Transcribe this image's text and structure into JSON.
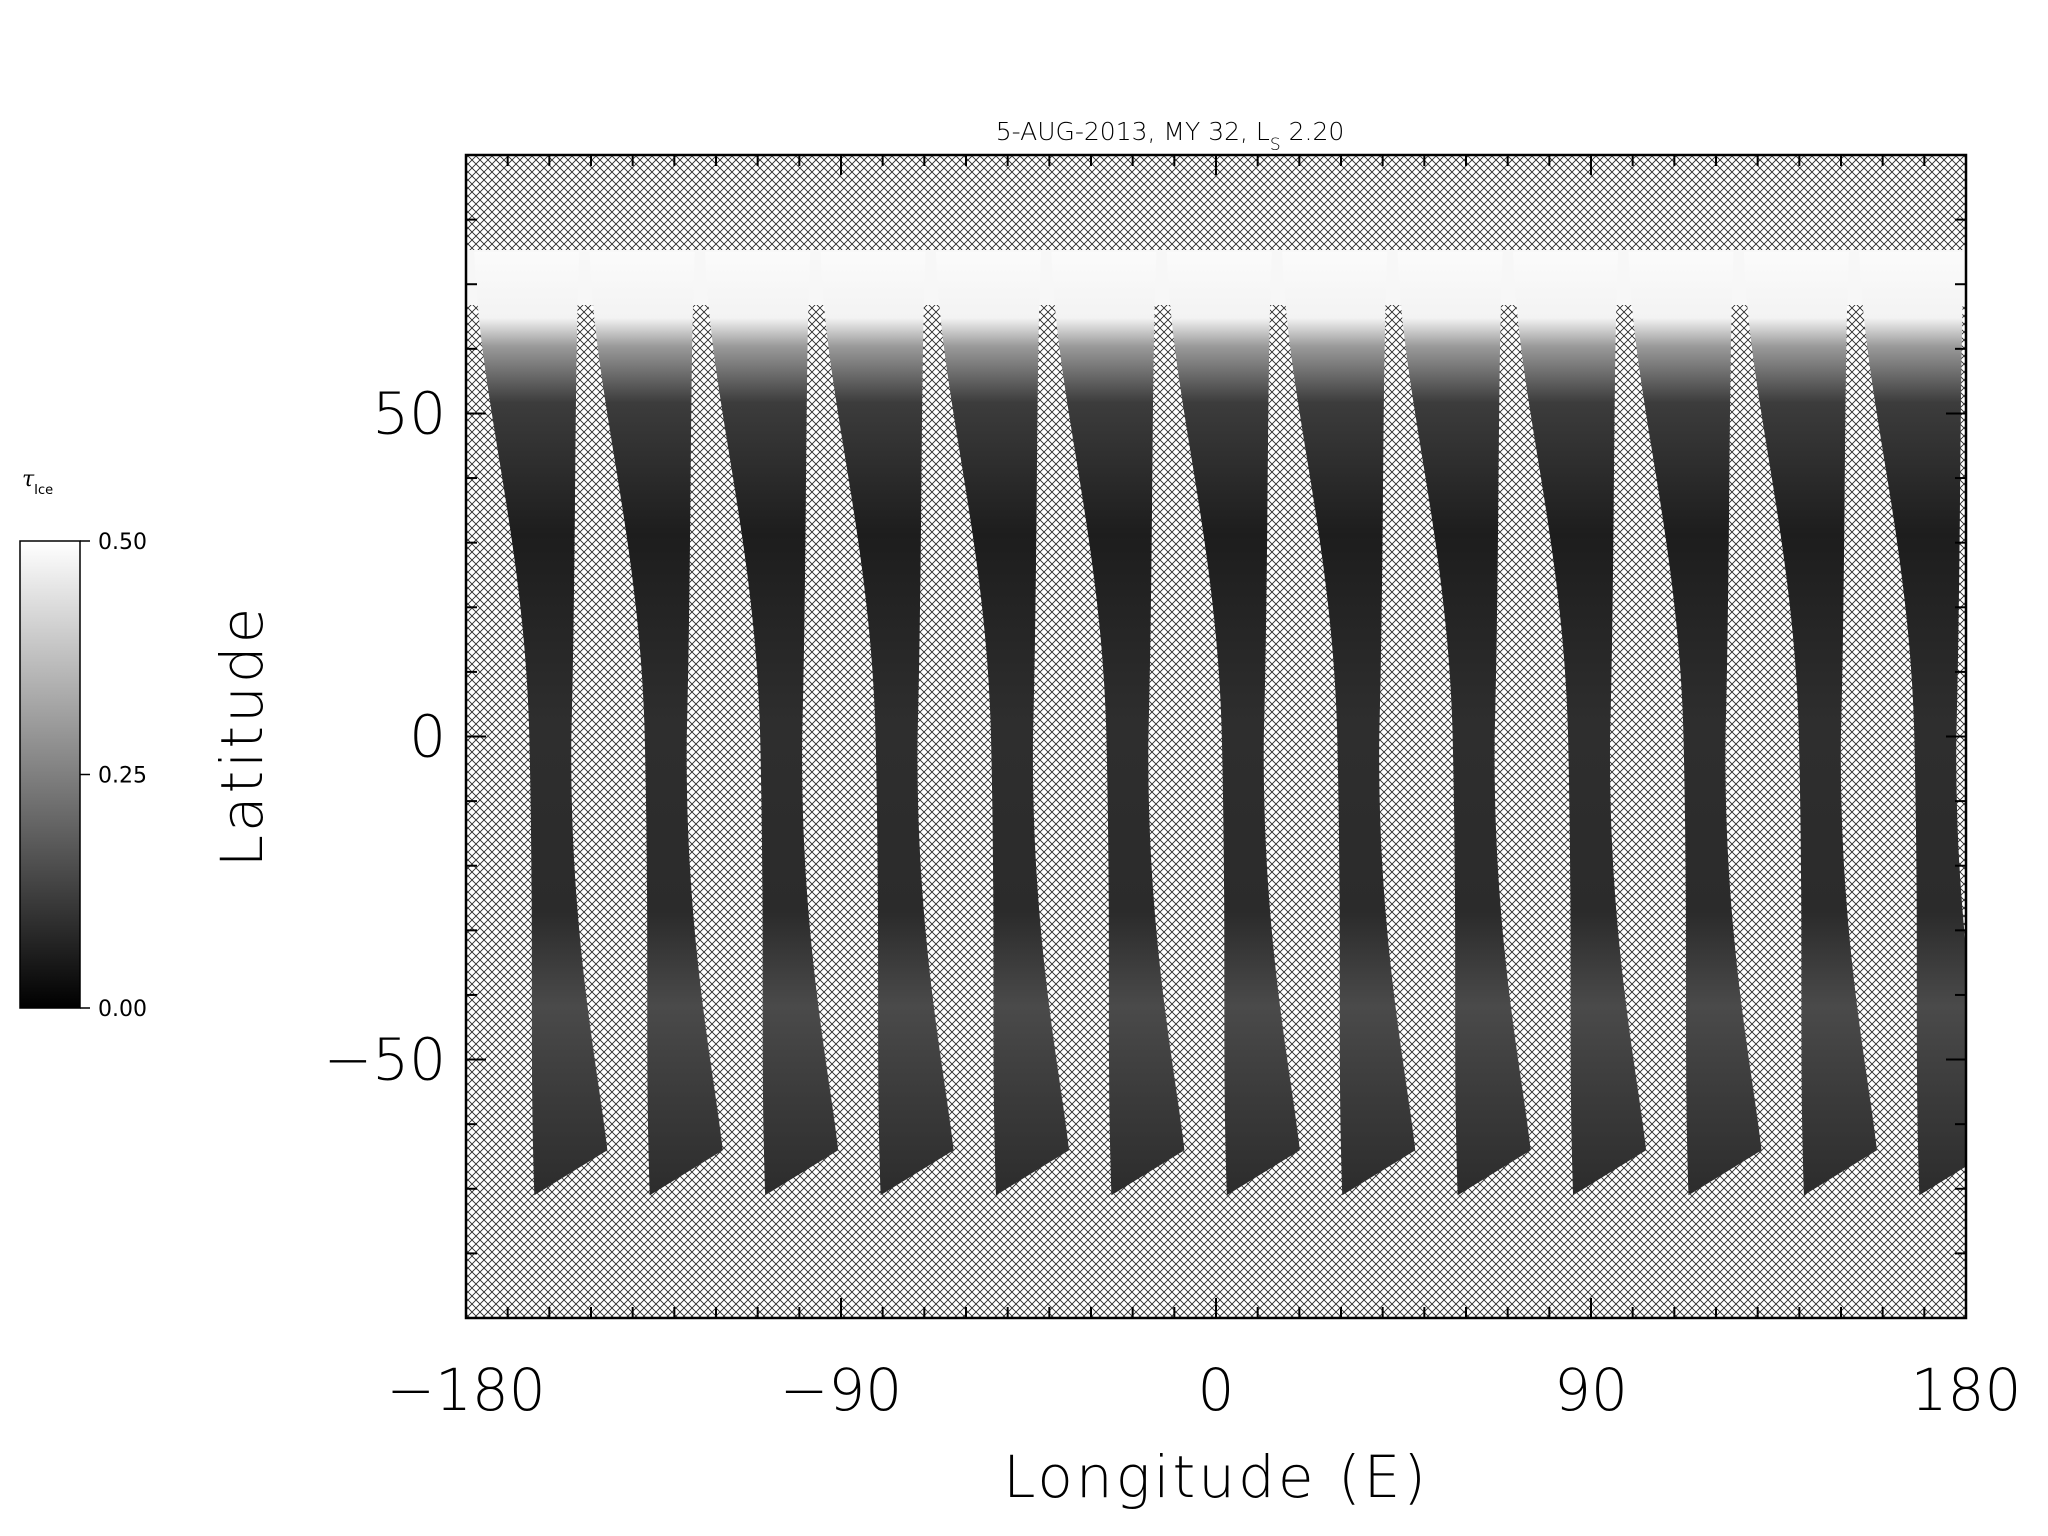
{
  "chart_data": {
    "type": "heatmap",
    "title": "5-AUG-2013, MY 32,  L",
    "title_subscript": "S",
    "title_suffix": " 2.20",
    "xlabel": "Longitude (E)",
    "ylabel": "Latitude",
    "xlim": [
      -180,
      180
    ],
    "ylim": [
      -90,
      90
    ],
    "xticks": [
      -180,
      -90,
      0,
      90,
      180
    ],
    "xtick_labels": [
      "−180",
      "−90",
      "0",
      "90",
      "180"
    ],
    "yticks": [
      -50,
      0,
      50
    ],
    "ytick_labels": [
      "−50",
      "0",
      "50"
    ],
    "x_minor_step": 10,
    "y_minor_step": 10,
    "swath_count": 13,
    "swath_spacing_deg": 27.7,
    "swath_lat_range": [
      -71,
      75
    ],
    "no_data_pattern": "crosshatch",
    "colorbar": {
      "label": "τ",
      "label_subscript": "Ice",
      "colormap": "grayscale",
      "min": 0.0,
      "max": 0.5,
      "ticks": [
        0.0,
        0.25,
        0.5
      ],
      "tick_labels": [
        "0.00",
        "0.25",
        "0.50"
      ]
    },
    "colors": {
      "background": "#ffffff",
      "hatch": "#222222",
      "axis": "#000000"
    }
  }
}
